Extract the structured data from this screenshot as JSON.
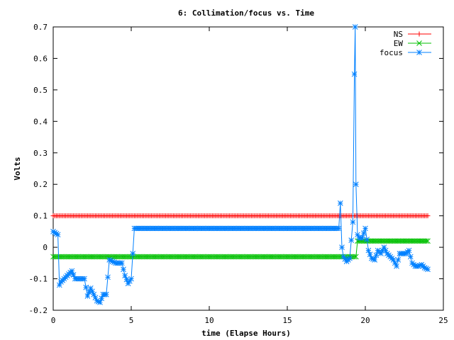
{
  "chart_data": {
    "type": "line",
    "title": "6: Collimation/focus vs. Time",
    "xlabel": "time (Elapse Hours)",
    "ylabel": "Volts",
    "xlim": [
      0,
      25
    ],
    "ylim": [
      -0.2,
      0.7
    ],
    "x_ticks": [
      0,
      5,
      10,
      15,
      20,
      25
    ],
    "x_tick_labels": [
      "0",
      "5",
      "10",
      "15",
      "20",
      "25"
    ],
    "y_ticks": [
      -0.2,
      -0.1,
      0,
      0.1,
      0.2,
      0.3,
      0.4,
      0.5,
      0.6,
      0.7
    ],
    "y_tick_labels": [
      "-0.2",
      "-0.1",
      "0",
      "0.1",
      "0.2",
      "0.3",
      "0.4",
      "0.5",
      "0.6",
      "0.7"
    ],
    "grid": false,
    "legend_position": "top-right",
    "series": [
      {
        "name": "NS",
        "color": "#ff0000",
        "marker": "plus",
        "x": [
          0,
          24
        ],
        "y": [
          0.1,
          0.1
        ]
      },
      {
        "name": "EW",
        "color": "#00c000",
        "marker": "cross",
        "x": [
          0,
          19.4,
          19.5,
          24
        ],
        "y": [
          -0.03,
          -0.03,
          0.02,
          0.02
        ]
      },
      {
        "name": "focus",
        "color": "#0080ff",
        "marker": "star",
        "x": [
          0,
          0.3,
          0.4,
          0.5,
          0.8,
          1.0,
          1.2,
          1.4,
          1.6,
          1.8,
          2.0,
          2.2,
          2.4,
          2.6,
          2.8,
          3.0,
          3.2,
          3.4,
          3.6,
          3.8,
          4.0,
          4.2,
          4.4,
          4.6,
          4.8,
          5.0,
          5.2,
          5.4,
          5.6,
          8.0,
          10.0,
          12.0,
          14.0,
          16.0,
          18.0,
          18.3,
          18.4,
          18.5,
          18.6,
          18.8,
          19.0,
          19.2,
          19.3,
          19.35,
          19.4,
          19.5,
          19.6,
          19.8,
          20.0,
          20.2,
          20.4,
          20.6,
          20.8,
          21.0,
          21.2,
          21.4,
          21.6,
          21.8,
          22.0,
          22.2,
          22.4,
          22.6,
          22.8,
          23.0,
          23.2,
          23.4,
          23.6,
          23.8,
          24.0
        ],
        "y": [
          0.05,
          0.04,
          -0.12,
          -0.11,
          -0.095,
          -0.085,
          -0.075,
          -0.1,
          -0.1,
          -0.1,
          -0.1,
          -0.155,
          -0.13,
          -0.15,
          -0.17,
          -0.175,
          -0.15,
          -0.15,
          -0.04,
          -0.045,
          -0.05,
          -0.05,
          -0.05,
          -0.09,
          -0.115,
          -0.1,
          0.06,
          0.06,
          0.06,
          0.06,
          0.06,
          0.06,
          0.06,
          0.06,
          0.06,
          0.06,
          0.14,
          0.0,
          -0.03,
          -0.045,
          -0.035,
          0.08,
          0.55,
          0.7,
          0.2,
          0.04,
          0.03,
          0.03,
          0.06,
          -0.01,
          -0.035,
          -0.04,
          -0.01,
          -0.02,
          0.0,
          -0.02,
          -0.03,
          -0.04,
          -0.06,
          -0.02,
          -0.02,
          -0.02,
          -0.01,
          -0.05,
          -0.06,
          -0.06,
          -0.055,
          -0.065,
          -0.07
        ]
      }
    ]
  }
}
